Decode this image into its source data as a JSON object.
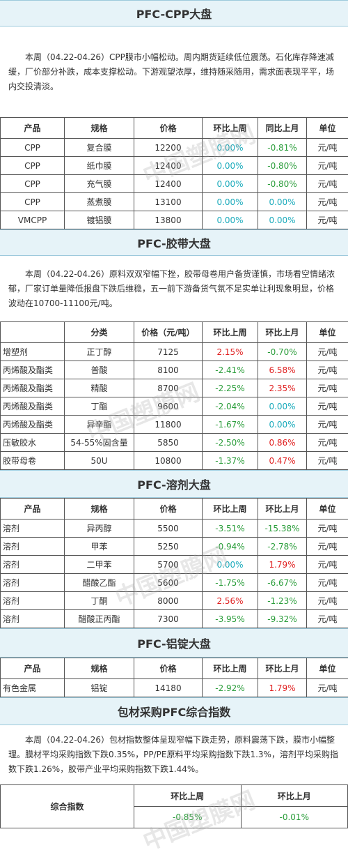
{
  "watermark": "中国塑膜网",
  "sections": [
    {
      "title": "PFC-CPP大盘",
      "paragraph": "本周（04.22-04.26）CPP膜市小幅松动。周内期货延续低位震荡。石化库存降速减缓，厂价部分补跌，成本支撑松动。下游观望浓厚，维持随采随用，需求面表现平平，场内交投清淡。",
      "table": {
        "header": [
          "产品",
          "规格",
          "价格",
          "环比上周",
          "同比上月",
          "单位"
        ],
        "rows": [
          [
            "CPP",
            "复合膜",
            "12200",
            "0.00%",
            "-0.81%",
            "元/吨"
          ],
          [
            "CPP",
            "纸巾膜",
            "12400",
            "0.00%",
            "-0.80%",
            "元/吨"
          ],
          [
            "CPP",
            "充气膜",
            "12400",
            "0.00%",
            "-0.80%",
            "元/吨"
          ],
          [
            "CPP",
            "蒸煮膜",
            "13100",
            "0.00%",
            "0.00%",
            "元/吨"
          ],
          [
            "VMCPP",
            "镀铝膜",
            "13800",
            "0.00%",
            "0.00%",
            "元/吨"
          ]
        ]
      }
    },
    {
      "title": "PFC-胶带大盘",
      "paragraph": "本周（04.22-04.26）原料双双窄幅下挫，胶带母卷用户备货谨慎，市场看空情绪浓郁，厂家订单量降低报盘下跌后维稳，五一前下游备货气氛不足实单让利现象明显，价格波动在10700-11100元/吨。",
      "table": {
        "header": [
          null,
          "分类",
          "价格（元/吨）",
          "环比上周",
          "环比上月",
          "单位"
        ],
        "rows": [
          [
            "增塑剂",
            "正丁醇",
            "7125",
            "2.15%",
            "-0.70%",
            "元/吨"
          ],
          [
            "丙烯酸及酯类",
            "普酸",
            "8100",
            "-2.41%",
            "6.58%",
            "元/吨"
          ],
          [
            "丙烯酸及酯类",
            "精酸",
            "8700",
            "-2.25%",
            "2.35%",
            "元/吨"
          ],
          [
            "丙烯酸及酯类",
            "丁酯",
            "9600",
            "-2.04%",
            "0.00%",
            "元/吨"
          ],
          [
            "丙烯酸及酯类",
            "异辛酯",
            "11800",
            "-1.67%",
            "0.00%",
            "元/吨"
          ],
          [
            "压敏胶水",
            "54-55%固含量",
            "5850",
            "-2.50%",
            "0.86%",
            "元/吨"
          ],
          [
            "胶带母卷",
            "50U",
            "10800",
            "-1.37%",
            "0.47%",
            "元/吨"
          ]
        ]
      }
    },
    {
      "title": "PFC-溶剂大盘",
      "table": {
        "header": [
          "产品",
          "规格",
          "价格",
          "环比上周",
          "环比上月",
          "单位"
        ],
        "rows": [
          [
            "溶剂",
            "异丙醇",
            "5500",
            "-3.51%",
            "-15.38%",
            "元/吨"
          ],
          [
            "溶剂",
            "甲苯",
            "5250",
            "-0.94%",
            "-2.78%",
            "元/吨"
          ],
          [
            "溶剂",
            "二甲苯",
            "5700",
            "0.00%",
            "1.79%",
            "元/吨"
          ],
          [
            "溶剂",
            "醋酸乙酯",
            "5600",
            "-1.75%",
            "-6.67%",
            "元/吨"
          ],
          [
            "溶剂",
            "丁酮",
            "8000",
            "2.56%",
            "-1.23%",
            "元/吨"
          ],
          [
            "溶剂",
            "醋酸正丙酯",
            "7300",
            "-3.95%",
            "-9.32%",
            "元/吨"
          ]
        ]
      }
    },
    {
      "title": "PFC-铝锭大盘",
      "table": {
        "header": [
          "产品",
          "规格",
          "价格",
          "环比上周",
          "环比上月",
          "单位"
        ],
        "rows": [
          [
            "有色金属",
            "铝锭",
            "14180",
            "-2.92%",
            "1.79%",
            "元/吨"
          ]
        ]
      }
    },
    {
      "title": "包材采购PFC综合指数",
      "paragraph": "本周（04.22-04.26）包材指数整体呈现窄幅下跌走势，原料震荡下跌，膜市小幅整理。膜材平均采购指数下跌0.35%，PP/PE原料平均采购指数下跌1.3%，溶剂平均采购指数下跌1.26%，胶带产业平均采购指数下跌1.44%。",
      "table": {
        "label": "综合指数",
        "header": [
          "环比上周",
          "环比上月"
        ],
        "rows": [
          [
            "-0.85%",
            "-0.01%"
          ]
        ]
      }
    }
  ]
}
